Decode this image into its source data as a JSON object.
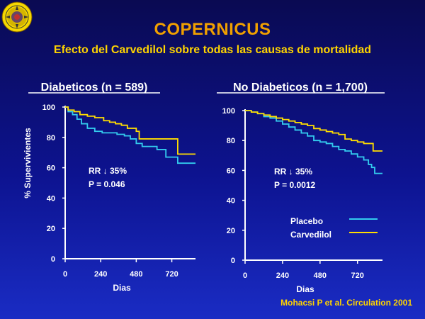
{
  "colors": {
    "background": "#0d1390",
    "title": "#f0a000",
    "subtitle": "#ffd400",
    "placebo": "#33ccee",
    "carvedilol": "#ffdd00",
    "axis": "#ffffff"
  },
  "logo_icon": "university-seal-icon",
  "title": "COPERNICUS",
  "subtitle": "Efecto del Carvedilol sobre todas las causas de mortalidad",
  "citation": "Mohacsi P et al. Circulation 2001",
  "chart_data": [
    {
      "type": "line",
      "title": "Diabeticos (n = 589)",
      "xlabel": "Dias",
      "ylabel": "% Supervivientes",
      "xlim": [
        0,
        880
      ],
      "ylim": [
        0,
        100
      ],
      "xticks": [
        0,
        240,
        480,
        720
      ],
      "yticks": [
        0,
        20,
        40,
        60,
        80,
        100
      ],
      "grid": false,
      "annotation": [
        "RR ↓ 35%",
        "P = 0.046"
      ],
      "series": [
        {
          "name": "Placebo",
          "color": "#33ccee",
          "x": [
            0,
            20,
            50,
            80,
            110,
            150,
            200,
            250,
            300,
            350,
            400,
            440,
            480,
            520,
            600,
            620,
            660,
            680,
            760,
            800,
            880
          ],
          "y": [
            100,
            97,
            95,
            92,
            89,
            86,
            84,
            83,
            83,
            82,
            81,
            79,
            76,
            74,
            74,
            72,
            72,
            67,
            63,
            63,
            63
          ]
        },
        {
          "name": "Carvedilol",
          "color": "#ffdd00",
          "x": [
            0,
            20,
            60,
            100,
            150,
            200,
            260,
            300,
            340,
            380,
            420,
            460,
            480,
            500,
            600,
            700,
            760,
            800,
            880
          ],
          "y": [
            100,
            98,
            97,
            95,
            94,
            93,
            91,
            90,
            89,
            88,
            86,
            86,
            84,
            79,
            79,
            79,
            69,
            69,
            69
          ]
        }
      ]
    },
    {
      "type": "line",
      "title": "No Diabeticos (n = 1,700)",
      "xlabel": "Dias",
      "ylabel": "",
      "xlim": [
        0,
        880
      ],
      "ylim": [
        0,
        100
      ],
      "xticks": [
        0,
        240,
        480,
        720
      ],
      "yticks": [
        0,
        20,
        40,
        60,
        80,
        100
      ],
      "grid": false,
      "legend": "center-right",
      "annotation": [
        "RR ↓ 35%",
        "P = 0.0012"
      ],
      "series": [
        {
          "name": "Placebo",
          "color": "#33ccee",
          "x": [
            0,
            40,
            80,
            120,
            160,
            200,
            240,
            280,
            320,
            360,
            400,
            440,
            480,
            520,
            560,
            600,
            640,
            680,
            720,
            760,
            790,
            810,
            830,
            880
          ],
          "y": [
            100,
            99,
            98,
            96,
            95,
            93,
            91,
            89,
            87,
            85,
            83,
            80,
            79,
            78,
            76,
            74,
            73,
            71,
            69,
            67,
            64,
            62,
            58,
            58
          ]
        },
        {
          "name": "Carvedilol",
          "color": "#ffdd00",
          "x": [
            0,
            40,
            80,
            120,
            160,
            200,
            240,
            280,
            320,
            360,
            400,
            440,
            480,
            520,
            560,
            600,
            640,
            680,
            720,
            760,
            800,
            820,
            880
          ],
          "y": [
            100,
            99,
            98,
            97,
            96,
            95,
            94,
            93,
            92,
            91,
            90,
            88,
            87,
            86,
            85,
            84,
            81,
            80,
            79,
            78,
            78,
            73,
            73
          ]
        }
      ]
    }
  ]
}
